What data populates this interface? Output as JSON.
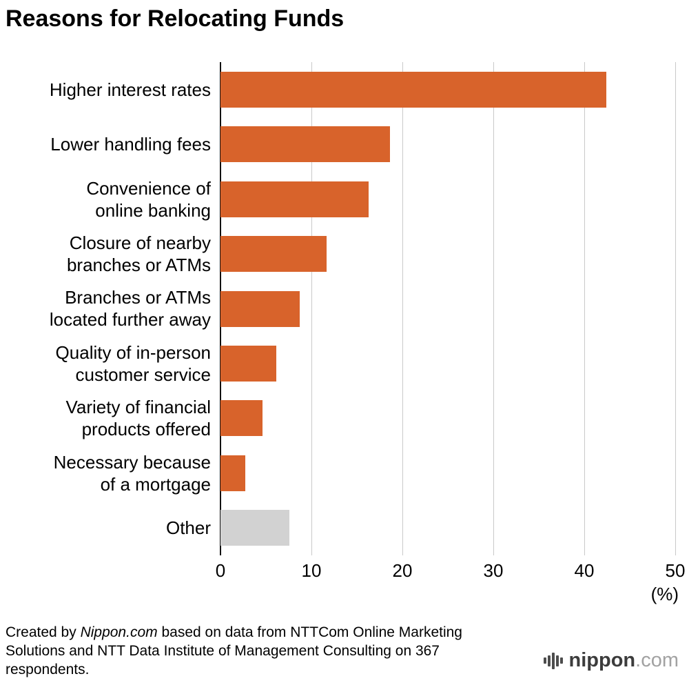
{
  "chart_data": {
    "type": "bar",
    "orientation": "horizontal",
    "title": "Reasons for Relocating Funds",
    "categories": [
      "Higher interest rates",
      "Lower handling fees",
      "Convenience of\nonline banking",
      "Closure of nearby\nbranches or ATMs",
      "Branches or ATMs\nlocated further away",
      "Quality of in-person\ncustomer service",
      "Variety of financial\nproducts offered",
      "Necessary because\nof a mortgage",
      "Other"
    ],
    "values": [
      42.4,
      18.6,
      16.3,
      11.7,
      8.7,
      6.1,
      4.6,
      2.7,
      7.6
    ],
    "colors": [
      "#d8632b",
      "#d8632b",
      "#d8632b",
      "#d8632b",
      "#d8632b",
      "#d8632b",
      "#d8632b",
      "#d8632b",
      "#d2d2d2"
    ],
    "bar_color": "#d8632b",
    "other_color": "#d2d2d2",
    "xlabel": "(%)",
    "ylabel": "",
    "xlim": [
      0,
      50
    ],
    "xticks": [
      0,
      10,
      20,
      30,
      40,
      50
    ],
    "grid": true,
    "legend": false
  },
  "footer": {
    "prefix": "Created by ",
    "source_italic": "Nippon.com",
    "suffix": " based on data from NTTCom Online Marketing Solutions and NTT Data Institute of Management Consulting on 367 respondents."
  },
  "logo": {
    "name": "nippon",
    "domain": ".com"
  }
}
